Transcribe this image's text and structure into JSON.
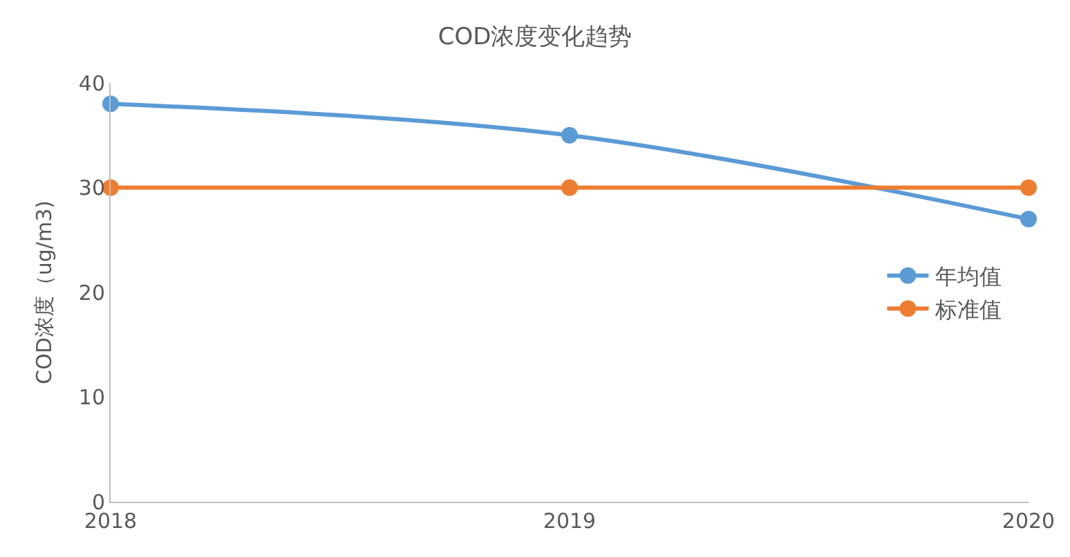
{
  "chart_data": {
    "type": "line",
    "title": "COD浓度变化趋势",
    "ylabel": "COD浓度（ug/m3)",
    "x": [
      2018,
      2019,
      2020
    ],
    "series": [
      {
        "name": "年均值",
        "color": "#5b9bd5",
        "values": [
          38,
          35,
          27
        ]
      },
      {
        "name": "标准值",
        "color": "#ed7d31",
        "values": [
          30,
          30,
          30
        ]
      }
    ],
    "xlim": [
      2018,
      2020
    ],
    "xticks": [
      2018,
      2019,
      2020
    ],
    "ylim": [
      0,
      40
    ],
    "yticks": [
      0,
      10,
      20,
      30,
      40
    ],
    "legend": "right",
    "marker": "circle",
    "line_style": "solid"
  }
}
